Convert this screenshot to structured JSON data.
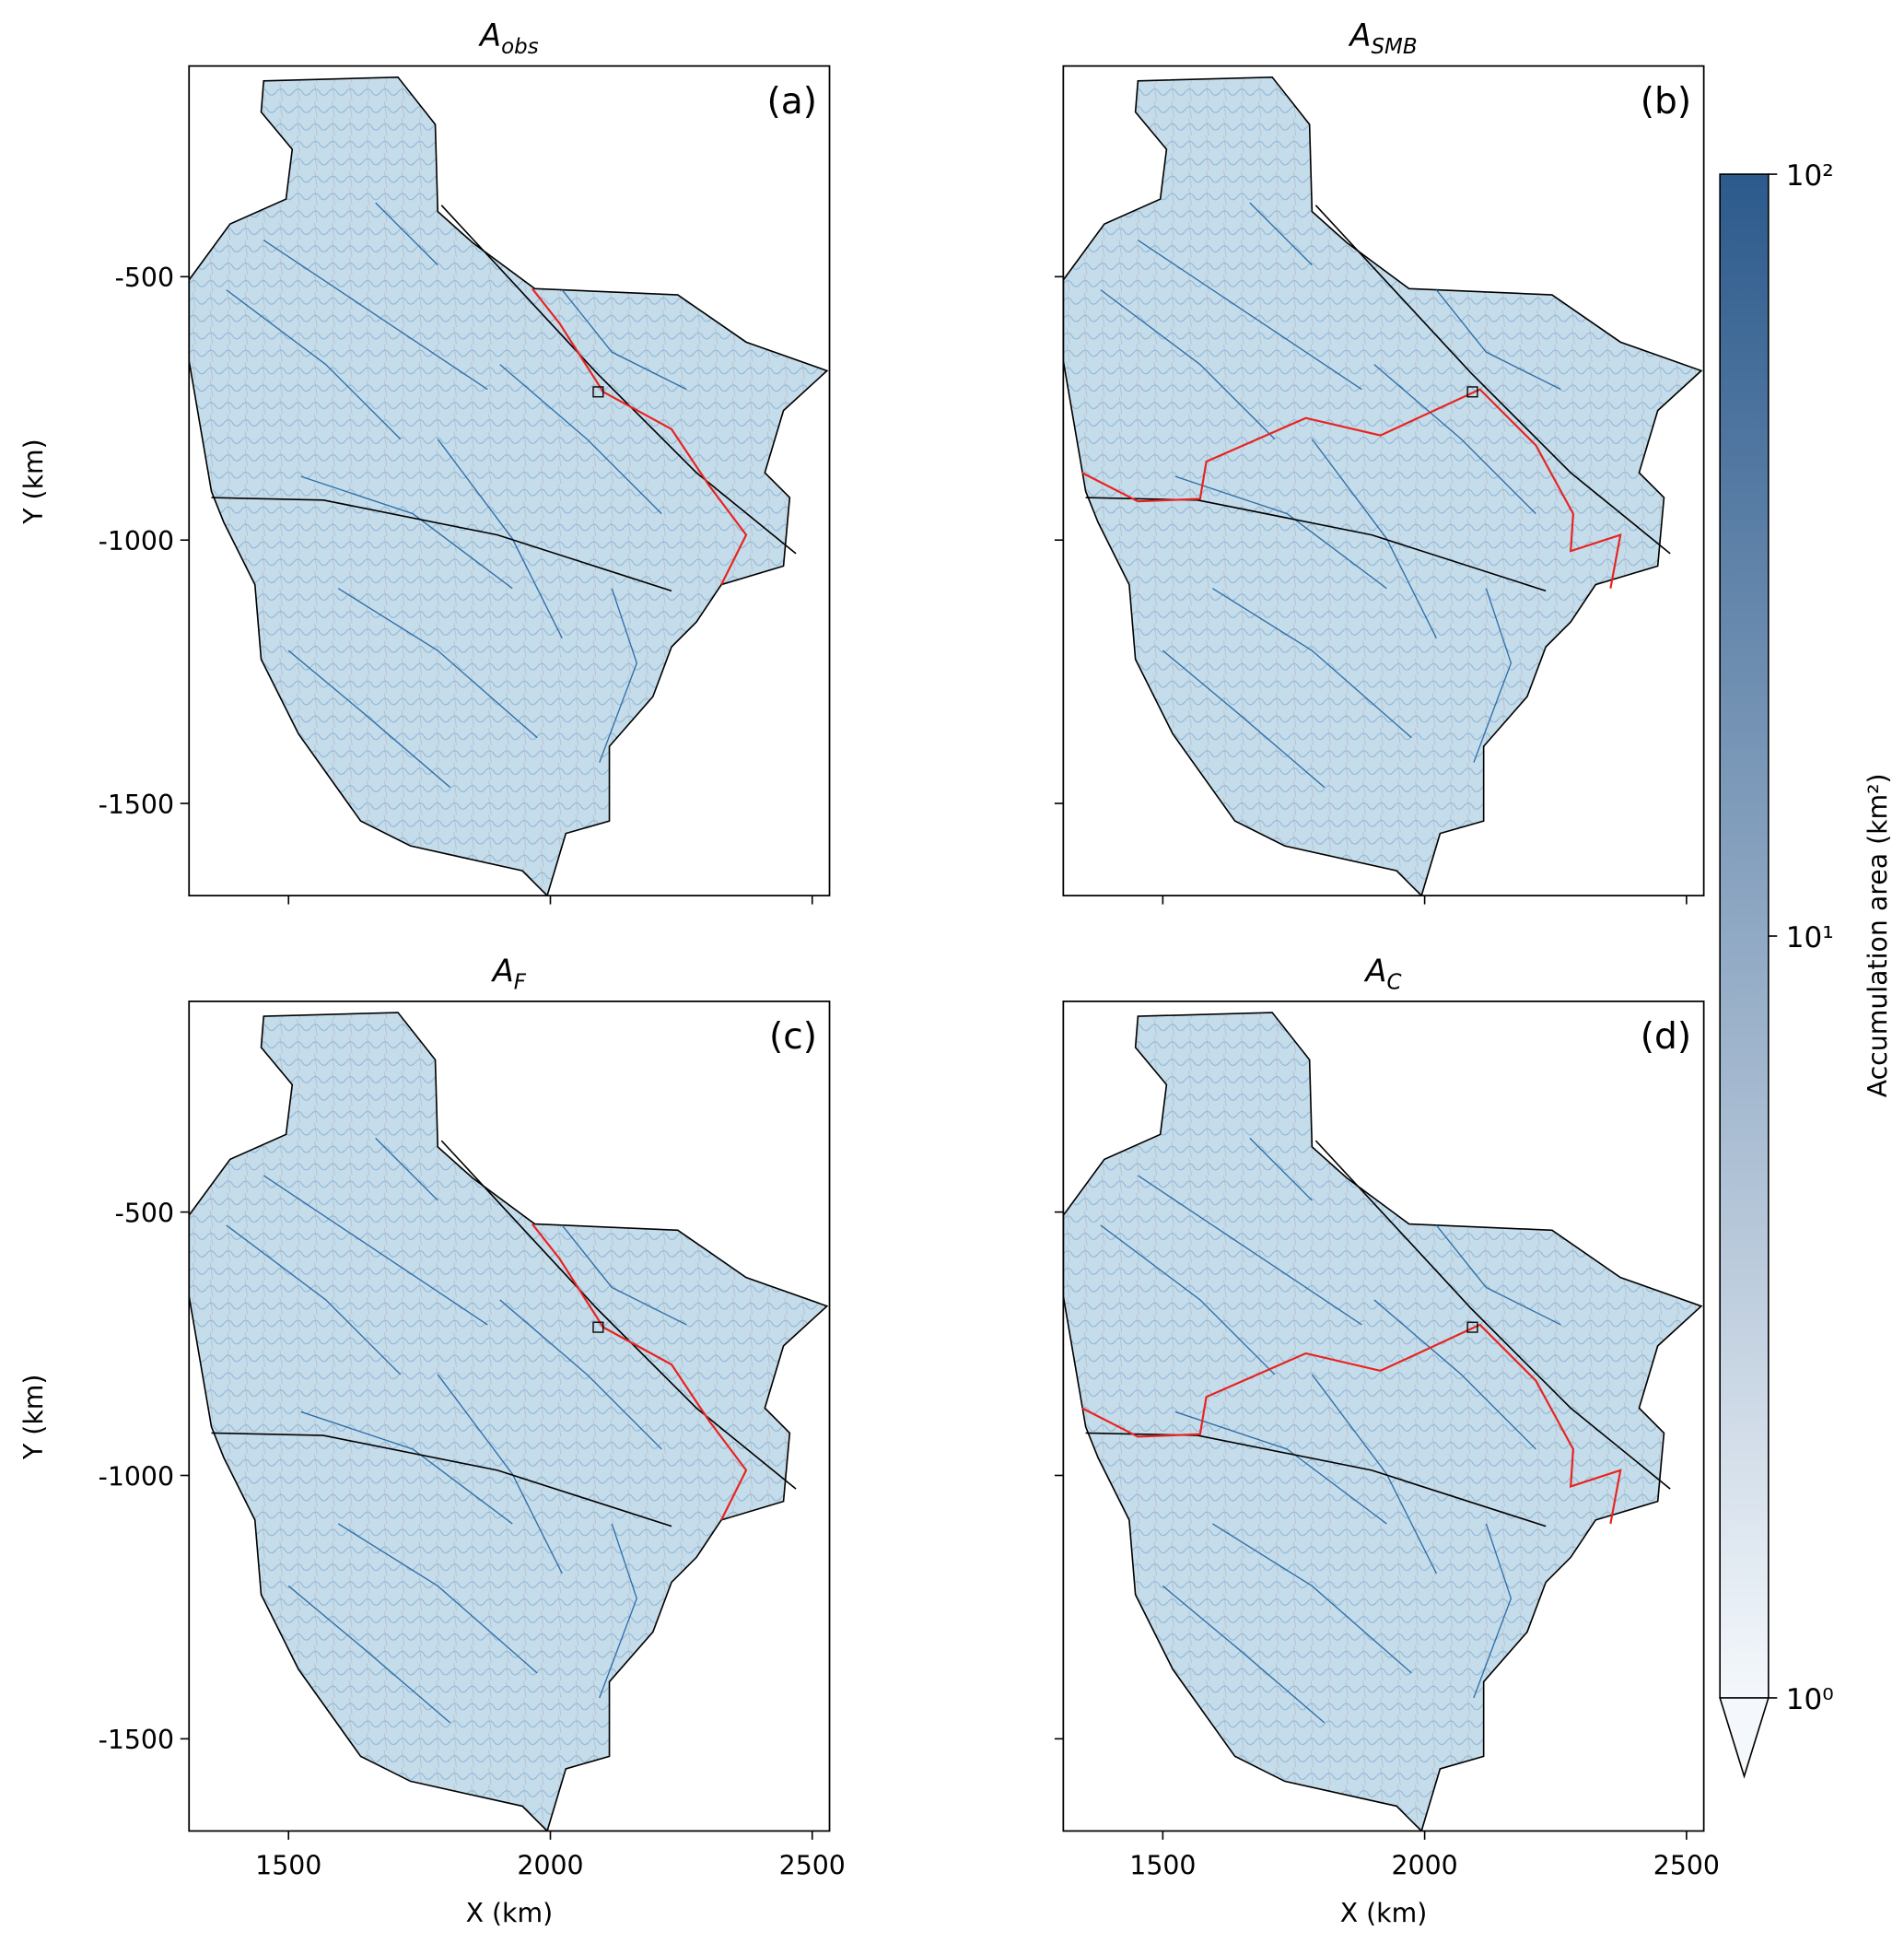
{
  "chart_data": [
    {
      "type": "map",
      "title": "A",
      "title_sub": "obs",
      "panel_label": "(a)",
      "xlim": [
        1310,
        2533
      ],
      "ylim": [
        -1675,
        -100
      ],
      "xticks": [
        1500,
        2000,
        2500
      ],
      "yticks": [
        -500,
        -1000,
        -1500
      ],
      "ylabel": "Y (km)",
      "show_xticklabels": false,
      "show_yticklabels": true,
      "route": "east"
    },
    {
      "type": "map",
      "title": "A",
      "title_sub": "SMB",
      "panel_label": "(b)",
      "xlim": [
        1310,
        2533
      ],
      "ylim": [
        -1675,
        -100
      ],
      "xticks": [
        1500,
        2000,
        2500
      ],
      "yticks": [
        -500,
        -1000,
        -1500
      ],
      "show_xticklabels": false,
      "show_yticklabels": false,
      "route": "west"
    },
    {
      "type": "map",
      "title": "A",
      "title_sub": "F",
      "panel_label": "(c)",
      "xlim": [
        1310,
        2533
      ],
      "ylim": [
        -1675,
        -100
      ],
      "xticks": [
        1500,
        2000,
        2500
      ],
      "yticks": [
        -500,
        -1000,
        -1500
      ],
      "xlabel": "X (km)",
      "ylabel": "Y (km)",
      "show_xticklabels": true,
      "show_yticklabels": true,
      "route": "east"
    },
    {
      "type": "map",
      "title": "A",
      "title_sub": "C",
      "panel_label": "(d)",
      "xlim": [
        1310,
        2533
      ],
      "ylim": [
        -1675,
        -100
      ],
      "xticks": [
        1500,
        2000,
        2500
      ],
      "yticks": [
        -500,
        -1000,
        -1500
      ],
      "xlabel": "X (km)",
      "show_xticklabels": true,
      "show_yticklabels": false,
      "route": "west"
    }
  ],
  "colorbar": {
    "label": "Accumulation area (km²)",
    "log": true,
    "lim": [
      1,
      100
    ],
    "extend": "min",
    "colors": [
      "#f4f8fc",
      "#2c5a8c"
    ],
    "ticks": [
      {
        "value": 1,
        "label": "10⁰"
      },
      {
        "value": 10,
        "label": "10¹"
      },
      {
        "value": 100,
        "label": "10²"
      }
    ]
  }
}
